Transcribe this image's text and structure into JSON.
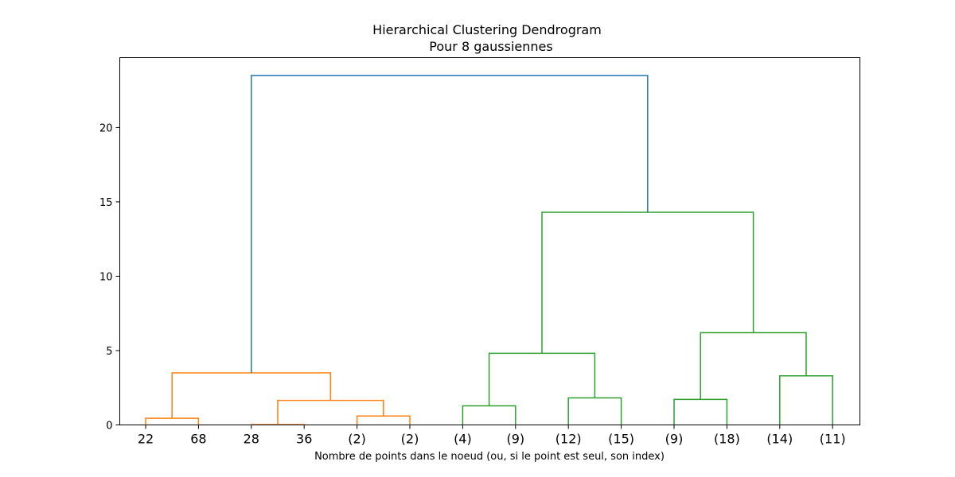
{
  "chart_data": {
    "type": "dendrogram",
    "title": "Hierarchical Clustering Dendrogram",
    "subtitle": "Pour 8 gaussiennes",
    "xlabel": "Nombre de points dans le noeud (ou, si le point est seul, son index)",
    "ylabel": "",
    "ylim": [
      0,
      24.7
    ],
    "yticks": [
      0,
      5,
      10,
      15,
      20
    ],
    "grid": false,
    "leaves": [
      "22",
      "68",
      "28",
      "36",
      "(2)",
      "(2)",
      "(4)",
      "(9)",
      "(12)",
      "(15)",
      "(9)",
      "(18)",
      "(14)",
      "(11)"
    ],
    "colors": {
      "above_threshold": "#1f77b4",
      "cluster_1": "#ff7f0e",
      "cluster_2": "#2ca02c"
    },
    "merges": [
      {
        "left": "22",
        "right": "68",
        "height": 0.45,
        "color": "cluster_1"
      },
      {
        "left": "28",
        "right": "36",
        "height": 0.02,
        "color": "cluster_1"
      },
      {
        "left": "(2)",
        "right": "(2)",
        "height": 0.6,
        "color": "cluster_1"
      },
      {
        "left": "[28,36]",
        "right": "[(2),(2)]",
        "height": 1.65,
        "color": "cluster_1"
      },
      {
        "left": "[22,68]",
        "right": "[28,36,(2),(2)]",
        "height": 3.5,
        "color": "cluster_1"
      },
      {
        "left": "(4)",
        "right": "(9)",
        "height": 1.28,
        "color": "cluster_2"
      },
      {
        "left": "(12)",
        "right": "(15)",
        "height": 1.82,
        "color": "cluster_2"
      },
      {
        "left": "[(4),(9)]",
        "right": "[(12),(15)]",
        "height": 4.82,
        "color": "cluster_2"
      },
      {
        "left": "(9)",
        "right": "(18)",
        "height": 1.72,
        "color": "cluster_2"
      },
      {
        "left": "(14)",
        "right": "(11)",
        "height": 3.3,
        "color": "cluster_2"
      },
      {
        "left": "[(9),(18)]",
        "right": "[(14),(11)]",
        "height": 6.2,
        "color": "cluster_2"
      },
      {
        "left": "[(4)..(15)]",
        "right": "[(9)..(11)]",
        "height": 14.3,
        "color": "cluster_2"
      },
      {
        "left": "orange-cluster",
        "right": "green-cluster",
        "height": 23.5,
        "color": "above_threshold"
      }
    ]
  }
}
